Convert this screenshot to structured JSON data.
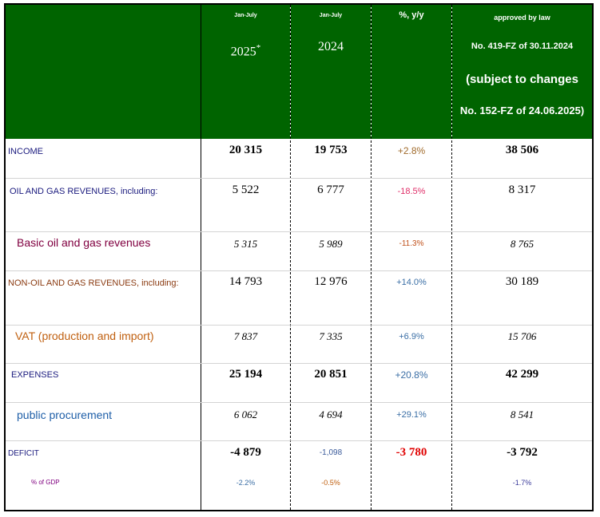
{
  "header": {
    "col1_period": "Jan-July",
    "col1_year": "2025",
    "col1_mark": "*",
    "col2_period": "Jan-July",
    "col2_year": "2024",
    "col3_title": "%, y/y",
    "col4_line1": "approved by law",
    "col4_line2": "No. 419-FZ of 30.11.2024",
    "col4_line3": "(subject to changes",
    "col4_line4": "No. 152-FZ of 24.06.2025)"
  },
  "rows": [
    {
      "label": "INCOME",
      "v2025": "20 315",
      "v2024": "19 753",
      "yoy": "+2.8%",
      "law": "38 506"
    },
    {
      "label": "OIL AND GAS REVENUES, including:",
      "v2025": "5 522",
      "v2024": "6 777",
      "yoy": "-18.5%",
      "law": "8 317"
    },
    {
      "label": "Basic oil and gas revenues",
      "v2025": "5 315",
      "v2024": "5 989",
      "yoy": "-11.3%",
      "law": "8 765"
    },
    {
      "label": "NON-OIL AND GAS REVENUES, including:",
      "v2025": "14 793",
      "v2024": "12 976",
      "yoy": "+14.0%",
      "law": "30 189"
    },
    {
      "label": "VAT (production and import)",
      "v2025": "7 837",
      "v2024": "7 335",
      "yoy": "+6.9%",
      "law": "15 706"
    },
    {
      "label": "EXPENSES",
      "v2025": "25 194",
      "v2024": "20 851",
      "yoy": "+20.8%",
      "law": "42 299"
    },
    {
      "label": "public procurement",
      "v2025": "6 062",
      "v2024": "4 694",
      "yoy": "+29.1%",
      "law": "8 541"
    },
    {
      "label": "DEFICIT",
      "v2025": "-4 879",
      "v2024": "-1,098",
      "yoy": "-3 780",
      "law": "-3 792"
    },
    {
      "label": "% of GDP",
      "v2025": "-2.2%",
      "v2024": "-0.5%",
      "yoy": "",
      "law": "-1.7%"
    }
  ],
  "colors": {
    "header_bg": "#006400",
    "label_navy": "#1a1a7e",
    "label_maroon": "#800040",
    "label_brown": "#8a3a10",
    "label_orange": "#c06010",
    "label_blue": "#1f5fa8",
    "pct_tan": "#a06a2a",
    "pct_pink": "#e0306a",
    "pct_blue": "#3a6ea5",
    "pct_red": "#e00000"
  }
}
